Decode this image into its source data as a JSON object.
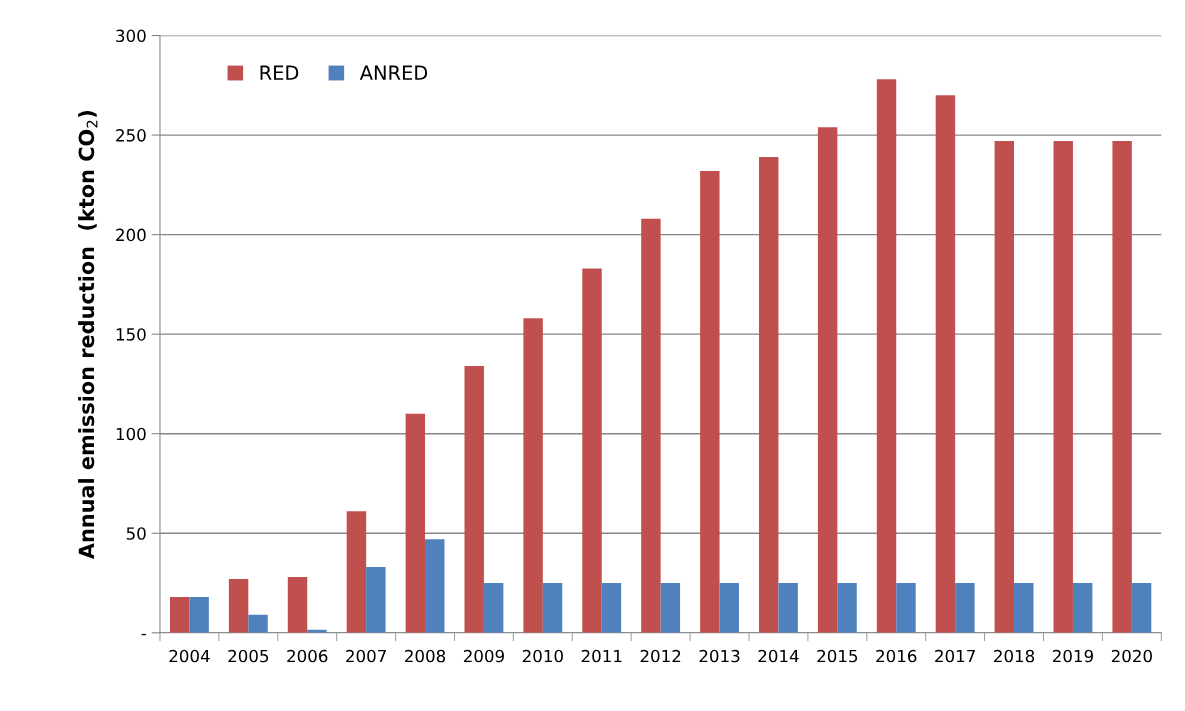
{
  "chart_data": {
    "type": "bar",
    "ylabel": "Annual emission reduction  (kton CO$_{2}$)",
    "categories": [
      "2004",
      "2005",
      "2006",
      "2007",
      "2008",
      "2009",
      "2010",
      "2011",
      "2012",
      "2013",
      "2014",
      "2015",
      "2016",
      "2017",
      "2018",
      "2019",
      "2020"
    ],
    "series": [
      {
        "name": "RED",
        "color": "#c0504d",
        "values": [
          18,
          27,
          28,
          61,
          110,
          134,
          158,
          183,
          208,
          232,
          239,
          254,
          278,
          270,
          247,
          247,
          247
        ]
      },
      {
        "name": "ANRED",
        "color": "#4f81bd",
        "values": [
          18,
          9,
          1.5,
          33,
          47,
          25,
          25,
          25,
          25,
          25,
          25,
          25,
          25,
          25,
          25,
          25,
          25
        ]
      }
    ],
    "ylim": [
      0,
      300
    ],
    "yticks": [
      {
        "value": 0,
        "label": "-"
      },
      50,
      100,
      150,
      200,
      250,
      300
    ],
    "grid": "y",
    "legend": "top left"
  }
}
